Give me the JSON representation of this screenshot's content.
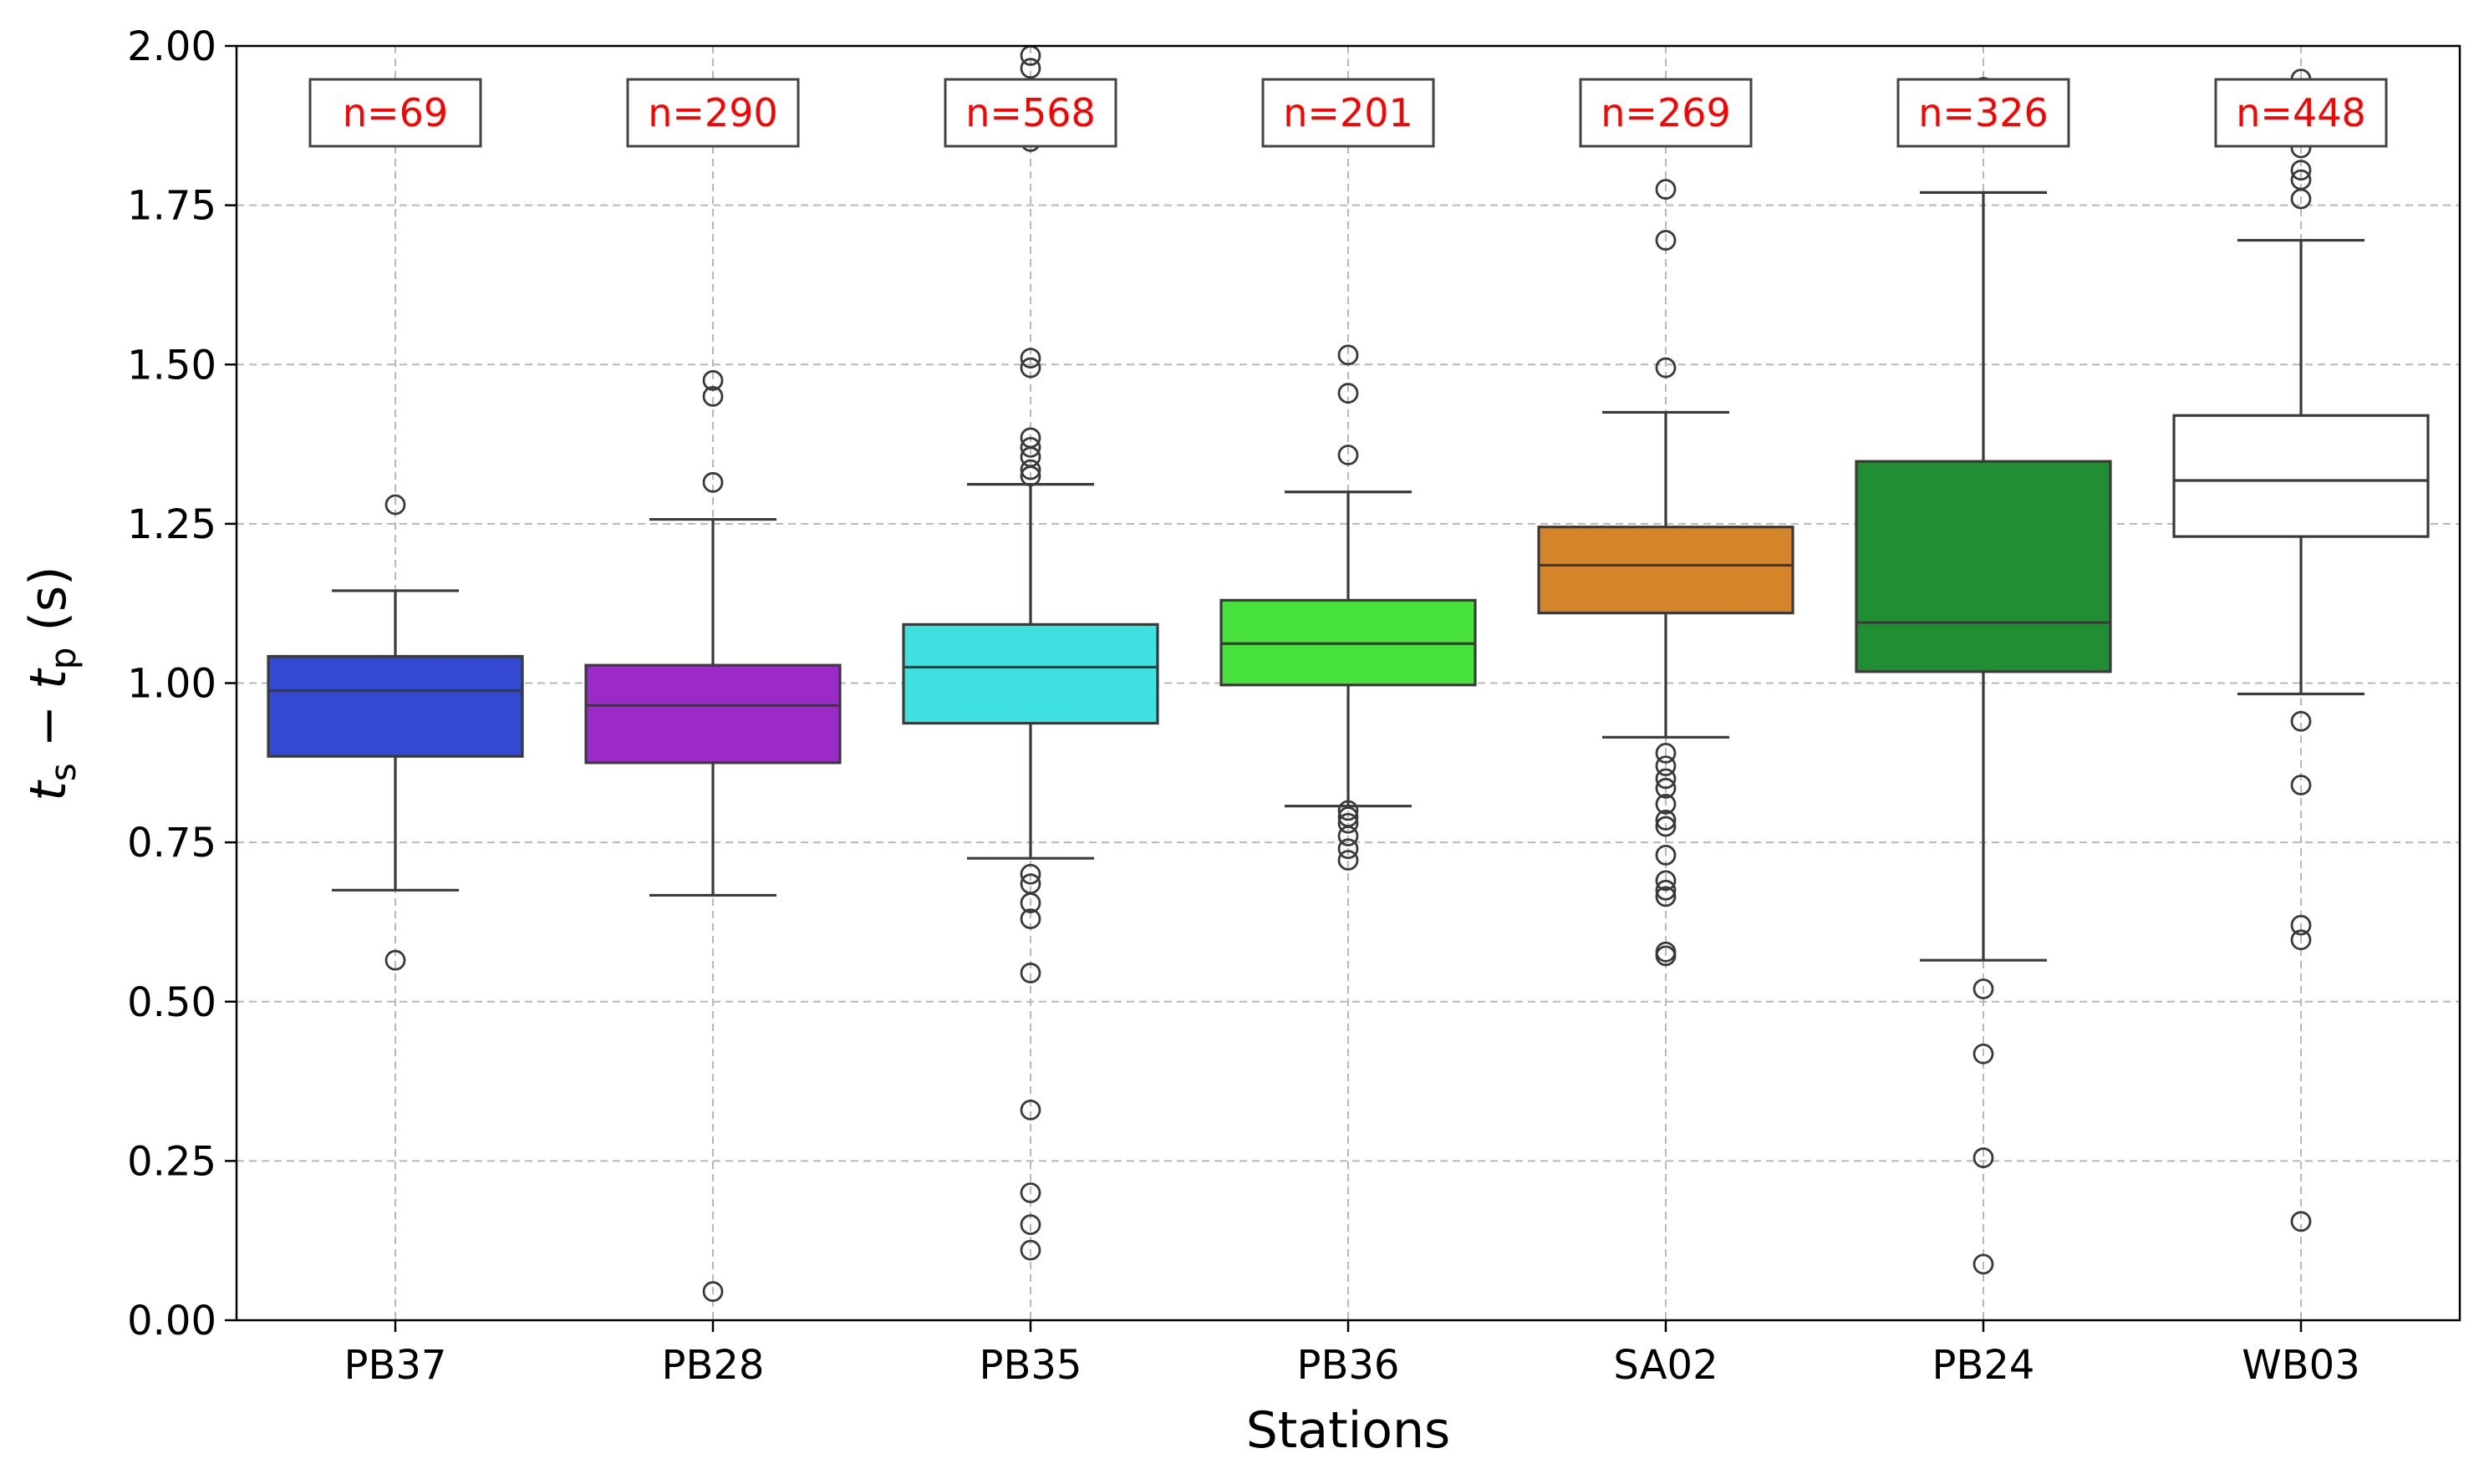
{
  "chart_data": {
    "type": "box",
    "xlabel": "Stations",
    "ylabel": {
      "t1": "t",
      "t1_sub": "s",
      "op": " − ",
      "t2": "t",
      "t2_sub": "p",
      "unit": " (s)"
    },
    "ylim": [
      0,
      2
    ],
    "yticks": [
      "0.00",
      "0.25",
      "0.50",
      "0.75",
      "1.00",
      "1.25",
      "1.50",
      "1.75",
      "2.00"
    ],
    "grid": true,
    "annotation_color": "#ff0000",
    "categories": [
      "PB37",
      "PB28",
      "PB35",
      "PB36",
      "SA02",
      "PB24",
      "WB03"
    ],
    "boxes": [
      {
        "station": "PB37",
        "n_label": "n=69",
        "color": "#3349d1",
        "whisker_low": 0.675,
        "q1": 0.885,
        "median": 0.988,
        "q3": 1.042,
        "whisker_high": 1.145,
        "outliers": [
          1.28,
          0.565
        ]
      },
      {
        "station": "PB28",
        "n_label": "n=290",
        "color": "#9b2ac6",
        "whisker_low": 0.667,
        "q1": 0.875,
        "median": 0.965,
        "q3": 1.028,
        "whisker_high": 1.257,
        "outliers": [
          1.475,
          1.45,
          1.315,
          0.045
        ]
      },
      {
        "station": "PB35",
        "n_label": "n=568",
        "color": "#3fe0e0",
        "whisker_low": 0.725,
        "q1": 0.937,
        "median": 1.025,
        "q3": 1.092,
        "whisker_high": 1.312,
        "outliers": [
          1.985,
          1.965,
          1.85,
          1.51,
          1.495,
          1.385,
          1.37,
          1.355,
          1.335,
          1.325,
          0.7,
          0.685,
          0.655,
          0.63,
          0.545,
          0.33,
          0.2,
          0.15,
          0.11
        ]
      },
      {
        "station": "PB36",
        "n_label": "n=201",
        "color": "#48e23d",
        "whisker_low": 0.807,
        "q1": 0.997,
        "median": 1.062,
        "q3": 1.13,
        "whisker_high": 1.3,
        "outliers": [
          1.515,
          1.455,
          1.358,
          0.8,
          0.79,
          0.78,
          0.76,
          0.74,
          0.722
        ]
      },
      {
        "station": "SA02",
        "n_label": "n=269",
        "color": "#d58529",
        "whisker_low": 0.915,
        "q1": 1.11,
        "median": 1.185,
        "q3": 1.245,
        "whisker_high": 1.425,
        "outliers": [
          1.775,
          1.695,
          1.495,
          0.89,
          0.87,
          0.85,
          0.835,
          0.81,
          0.785,
          0.775,
          0.73,
          0.69,
          0.675,
          0.665,
          0.578,
          0.572
        ]
      },
      {
        "station": "PB24",
        "n_label": "n=326",
        "color": "#228e33",
        "whisker_low": 0.565,
        "q1": 1.018,
        "median": 1.095,
        "q3": 1.348,
        "whisker_high": 1.77,
        "outliers": [
          1.935,
          0.52,
          0.418,
          0.255,
          0.088
        ]
      },
      {
        "station": "WB03",
        "n_label": "n=448",
        "color": "#ffffff",
        "whisker_low": 0.983,
        "q1": 1.23,
        "median": 1.318,
        "q3": 1.42,
        "whisker_high": 1.695,
        "outliers": [
          1.948,
          1.84,
          1.805,
          1.79,
          1.76,
          0.94,
          0.84,
          0.62,
          0.597,
          0.155
        ]
      }
    ]
  }
}
